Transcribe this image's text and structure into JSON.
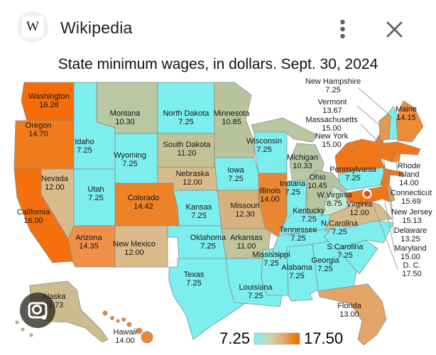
{
  "header": {
    "logo_letter": "W",
    "title": "Wikipedia",
    "menu_icon": "kebab-menu-icon",
    "close_icon": "close-icon",
    "icon_color": "#5f6368"
  },
  "lens": {
    "icon": "google-lens-icon"
  },
  "map": {
    "title": "State minimum wages, in dollars. Sept. 30, 2024",
    "legend": {
      "min_label": "7.25",
      "max_label": "17.50",
      "gradient": [
        "#7deeee",
        "#a9e2d5",
        "#c8d8b2",
        "#d8c194",
        "#e4a468",
        "#ee8426",
        "#f2690a"
      ]
    },
    "states": [
      {
        "id": "WA",
        "name": "Washington",
        "value": "16.28",
        "color": "#f56c08"
      },
      {
        "id": "OR",
        "name": "Oregon",
        "value": "14.70",
        "color": "#f07c1e"
      },
      {
        "id": "CA",
        "name": "California",
        "value": "16.00",
        "color": "#f56f0c"
      },
      {
        "id": "NV",
        "name": "Nevada",
        "value": "12.00",
        "color": "#d9ba8b"
      },
      {
        "id": "ID",
        "name": "Idaho",
        "value": "7.25",
        "color": "#7deeee"
      },
      {
        "id": "UT",
        "name": "Utah",
        "value": "7.25",
        "color": "#7deeee"
      },
      {
        "id": "AZ",
        "name": "Arizona",
        "value": "14.35",
        "color": "#ef8f48"
      },
      {
        "id": "MT",
        "name": "Montana",
        "value": "10.30",
        "color": "#b9c7a3"
      },
      {
        "id": "WY",
        "name": "Wyoming",
        "value": "7.25",
        "color": "#7deeee"
      },
      {
        "id": "CO",
        "name": "Colorado",
        "value": "14.42",
        "color": "#ee8226"
      },
      {
        "id": "NM",
        "name": "New Mexico",
        "value": "12.00",
        "color": "#d9ba8b"
      },
      {
        "id": "ND",
        "name": "North Dakota",
        "value": "7.25",
        "color": "#7deeee"
      },
      {
        "id": "SD",
        "name": "South Dakota",
        "value": "11.20",
        "color": "#c4c295"
      },
      {
        "id": "NE",
        "name": "Nebraska",
        "value": "12.00",
        "color": "#d9ba8b"
      },
      {
        "id": "KS",
        "name": "Kansas",
        "value": "7.25",
        "color": "#7deeee"
      },
      {
        "id": "OK",
        "name": "Oklahoma",
        "value": "7.25",
        "color": "#7deeee"
      },
      {
        "id": "TX",
        "name": "Texas",
        "value": "7.25",
        "color": "#7deeee"
      },
      {
        "id": "MN",
        "name": "Minnesota",
        "value": "10.85",
        "color": "#b9c49d"
      },
      {
        "id": "IA",
        "name": "Iowa",
        "value": "7.25",
        "color": "#7deeee"
      },
      {
        "id": "MO",
        "name": "Missouri",
        "value": "12.30",
        "color": "#d9b17d"
      },
      {
        "id": "AR",
        "name": "Arkansas",
        "value": "11.00",
        "color": "#c2c498"
      },
      {
        "id": "LA",
        "name": "Louisiana",
        "value": "7.25",
        "color": "#7deeee"
      },
      {
        "id": "WI",
        "name": "Wisconsin",
        "value": "7.25",
        "color": "#7deeee"
      },
      {
        "id": "IL",
        "name": "Illinois",
        "value": "14.00",
        "color": "#ea8733"
      },
      {
        "id": "MS",
        "name": "Mississippi",
        "value": "7.25",
        "color": "#7deeee"
      },
      {
        "id": "MI",
        "name": "Michigan",
        "value": "10.33",
        "color": "#b9c7a3"
      },
      {
        "id": "IN",
        "name": "Indiana",
        "value": "7.25",
        "color": "#7deeee"
      },
      {
        "id": "OH",
        "name": "Ohio",
        "value": "10.45",
        "color": "#b5c5a0"
      },
      {
        "id": "KY",
        "name": "Kentucky",
        "value": "7.25",
        "color": "#7deeee"
      },
      {
        "id": "TN",
        "name": "Tennessee",
        "value": "7.25",
        "color": "#7deeee"
      },
      {
        "id": "AL",
        "name": "Alabama",
        "value": "7.25",
        "color": "#7deeee"
      },
      {
        "id": "GA",
        "name": "Georgia",
        "value": "7.25",
        "color": "#7deeee"
      },
      {
        "id": "FL",
        "name": "Florida",
        "value": "13.00",
        "color": "#e3a468"
      },
      {
        "id": "SC",
        "name": "S.Carolina",
        "value": "7.25",
        "color": "#7deeee"
      },
      {
        "id": "NC",
        "name": "N.Carolina",
        "value": "7.25",
        "color": "#7deeee"
      },
      {
        "id": "VA",
        "name": "Virginia",
        "value": "12.00",
        "color": "#d9ba8b"
      },
      {
        "id": "WV",
        "name": "W.Virginia",
        "value": "8.75",
        "color": "#c8e7d0"
      },
      {
        "id": "PA",
        "name": "Pennsylvania",
        "value": "7.25",
        "color": "#7deeee"
      },
      {
        "id": "NY",
        "name": "New York",
        "value": "15.00",
        "color": "#f1761a"
      },
      {
        "id": "VT",
        "name": "Vermont",
        "value": "13.67",
        "color": "#e29a52"
      },
      {
        "id": "NH",
        "name": "New Hampshire",
        "value": "7.25",
        "color": "#7deeee"
      },
      {
        "id": "ME",
        "name": "Maine",
        "value": "14.15",
        "color": "#ec8b38"
      },
      {
        "id": "MA",
        "name": "Massachusetts",
        "value": "15.00",
        "color": "#f1761a"
      },
      {
        "id": "RI",
        "name": "Rhode Island",
        "value": "14.00",
        "color": "#ea8733"
      },
      {
        "id": "CT",
        "name": "Connecticut",
        "value": "15.69",
        "color": "#f17516"
      },
      {
        "id": "NJ",
        "name": "New Jersey",
        "value": "15.13",
        "color": "#f1761a"
      },
      {
        "id": "DE",
        "name": "Delaware",
        "value": "13.25",
        "color": "#e4a05c"
      },
      {
        "id": "MD",
        "name": "Maryland",
        "value": "15.00",
        "color": "#f1761a"
      },
      {
        "id": "DC",
        "name": "D. C.",
        "value": "17.50",
        "color": "#e8470a"
      },
      {
        "id": "AK",
        "name": "Alaska",
        "value": "11.73",
        "color": "#cdbc8e"
      },
      {
        "id": "HI",
        "name": "Hawaii",
        "value": "14.00",
        "color": "#ea8733"
      }
    ]
  }
}
